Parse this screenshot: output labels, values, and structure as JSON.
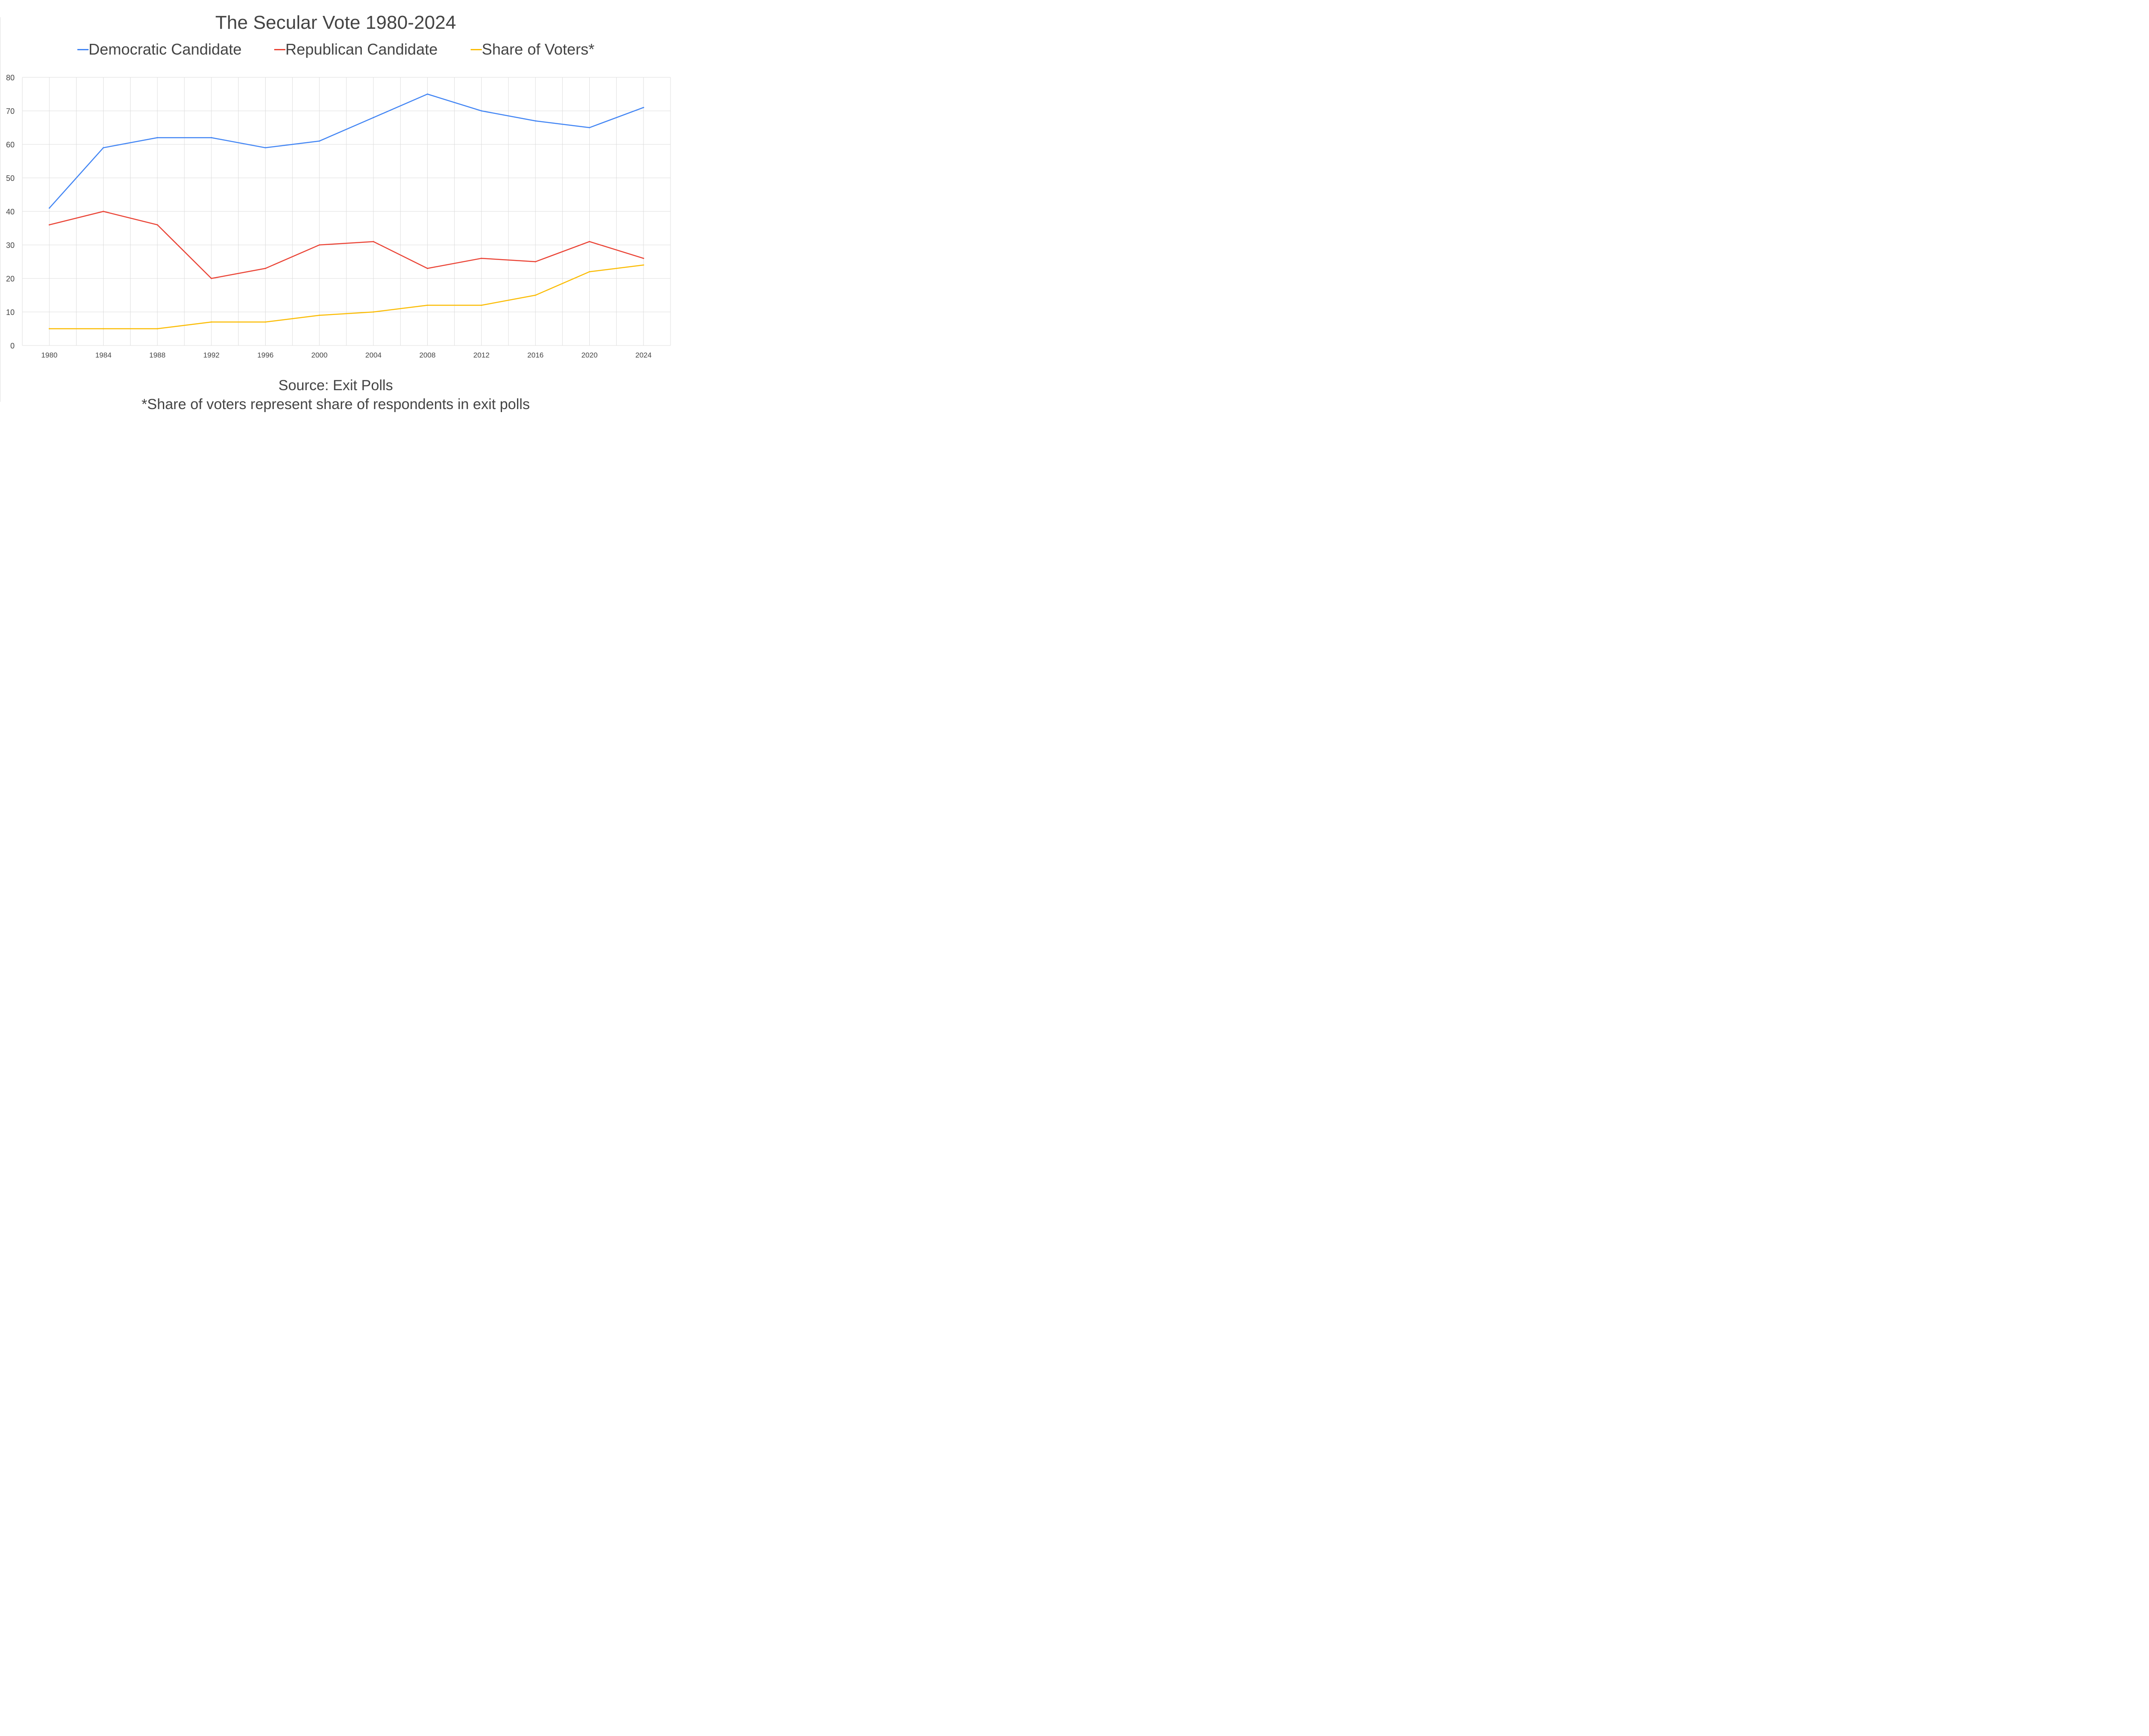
{
  "chart_data": {
    "type": "line",
    "title": "The Secular Vote 1980-2024",
    "xlabel": "",
    "ylabel": "",
    "x": [
      "1980",
      "1984",
      "1988",
      "1992",
      "1996",
      "2000",
      "2004",
      "2008",
      "2012",
      "2016",
      "2020",
      "2024"
    ],
    "ylim": [
      0,
      80
    ],
    "yticks": [
      0,
      10,
      20,
      30,
      40,
      50,
      60,
      70,
      80
    ],
    "grid": true,
    "legend_position": "top-center",
    "series": [
      {
        "name": "Democratic Candidate",
        "color": "#4285f4",
        "values": [
          41,
          59,
          62,
          62,
          59,
          61,
          68,
          75,
          70,
          67,
          65,
          71
        ]
      },
      {
        "name": "Republican Candidate",
        "color": "#ea4335",
        "values": [
          36,
          40,
          36,
          20,
          23,
          30,
          31,
          23,
          26,
          25,
          31,
          26
        ]
      },
      {
        "name": "Share of Voters*",
        "color": "#fbbc04",
        "values": [
          5,
          5,
          5,
          7,
          7,
          9,
          10,
          12,
          12,
          15,
          22,
          24
        ]
      }
    ],
    "annotations": [
      "Source: Exit Polls",
      "*Share of voters represent share of respondents in exit polls"
    ]
  }
}
